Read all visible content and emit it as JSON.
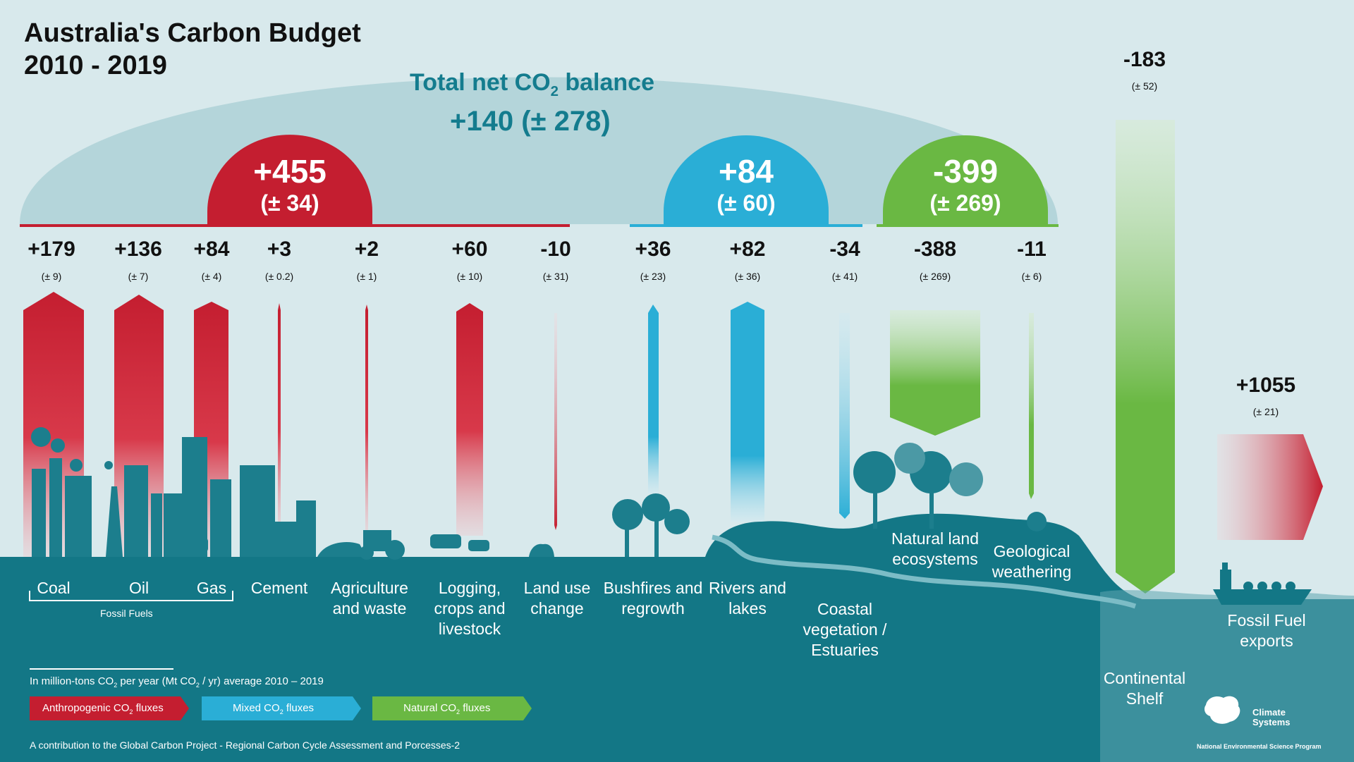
{
  "title": {
    "line1": "Australia's Carbon Budget",
    "line2": "2010 - 2019"
  },
  "total": {
    "label": "Total net CO",
    "sub": "2",
    "label_end": " balance",
    "value": "+140",
    "uncertainty": "(± 278)"
  },
  "groups": [
    {
      "key": "anthro",
      "value": "+455",
      "uncertainty": "(± 34)"
    },
    {
      "key": "mixed",
      "value": "+84",
      "uncertainty": "(± 60)"
    },
    {
      "key": "natural",
      "value": "-399",
      "uncertainty": "(± 269)"
    }
  ],
  "fluxes": [
    {
      "value": "+179",
      "uncertainty": "(± 9)",
      "label": "Coal"
    },
    {
      "value": "+136",
      "uncertainty": "(± 7)",
      "label": "Oil"
    },
    {
      "value": "+84",
      "uncertainty": "(± 4)",
      "label": "Gas"
    },
    {
      "value": "+3",
      "uncertainty": "(± 0.2)",
      "label": "Cement"
    },
    {
      "value": "+2",
      "uncertainty": "(± 1)",
      "label": "Agriculture and waste"
    },
    {
      "value": "+60",
      "uncertainty": "(± 10)",
      "label": "Logging, crops and livestock"
    },
    {
      "value": "-10",
      "uncertainty": "(± 31)",
      "label": "Land use change"
    },
    {
      "value": "+36",
      "uncertainty": "(± 23)",
      "label": "Bushfires and regrowth"
    },
    {
      "value": "+82",
      "uncertainty": "(± 36)",
      "label": "Rivers and lakes"
    },
    {
      "value": "-34",
      "uncertainty": "(± 41)",
      "label": "Coastal vegetation / Estuaries"
    },
    {
      "value": "-388",
      "uncertainty": "(± 269)",
      "label": "Natural land ecosystems"
    },
    {
      "value": "-11",
      "uncertainty": "(± 6)",
      "label": "Geological weathering"
    }
  ],
  "fossil_fuels_label": "Fossil Fuels",
  "shelf": {
    "value": "-183",
    "uncertainty": "(± 52)",
    "label": "Continental Shelf"
  },
  "exports": {
    "value": "+1055",
    "uncertainty": "(± 21)",
    "label": "Fossil Fuel exports"
  },
  "units": {
    "text": "In million-tons CO",
    "sub": "2",
    "text2": " per year (Mt CO",
    "sub2": "2",
    "text3": " / yr) average 2010 – 2019"
  },
  "legend": [
    {
      "label": "Anthropogenic CO",
      "sub": "2",
      "end": " fluxes",
      "color": "#c41e30"
    },
    {
      "label": "Mixed CO",
      "sub": "2",
      "end": " fluxes",
      "color": "#2aaed6"
    },
    {
      "label": "Natural CO",
      "sub": "2",
      "end": " fluxes",
      "color": "#6ab843"
    }
  ],
  "footer": "A contribution to the Global Carbon Project - Regional Carbon Cycle Assessment and Porcesses-2",
  "logo": {
    "name1": "Climate",
    "name2": "Systems",
    "program": "National Environmental Science Program"
  },
  "colors": {
    "red": "#c41e30",
    "blue": "#2aaed6",
    "green": "#6ab843",
    "teal": "#137786",
    "dome": "#b4d5da",
    "bg": "#d8e9ec"
  }
}
